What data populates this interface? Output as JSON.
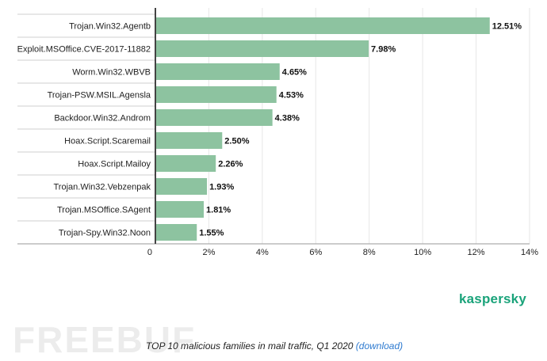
{
  "chart_data": {
    "type": "bar",
    "orientation": "horizontal",
    "categories": [
      "Trojan.Win32.Agentb",
      "Exploit.MSOffice.CVE-2017-11882",
      "Worm.Win32.WBVB",
      "Trojan-PSW.MSIL.Agensla",
      "Backdoor.Win32.Androm",
      "Hoax.Script.Scaremail",
      "Hoax.Script.Mailoy",
      "Trojan.Win32.Vebzenpak",
      "Trojan.MSOffice.SAgent",
      "Trojan-Spy.Win32.Noon"
    ],
    "values": [
      12.51,
      7.98,
      4.65,
      4.53,
      4.38,
      2.5,
      2.26,
      1.93,
      1.81,
      1.55
    ],
    "value_labels": [
      "12.51%",
      "7.98%",
      "4.65%",
      "4.53%",
      "4.38%",
      "2.50%",
      "2.26%",
      "1.93%",
      "1.81%",
      "1.55%"
    ],
    "x_ticks": [
      0,
      2,
      4,
      6,
      8,
      10,
      12,
      14
    ],
    "x_tick_labels": [
      "0",
      "2%",
      "4%",
      "6%",
      "8%",
      "10%",
      "12%",
      "14%"
    ],
    "xlim": [
      0,
      14
    ],
    "grid": true,
    "bar_color": "#8dc3a0",
    "title": "",
    "xlabel": "",
    "ylabel": ""
  },
  "brand": {
    "name": "kaspersky",
    "color": "#1aa37a"
  },
  "watermark": {
    "text": "FREEBUF"
  },
  "caption": {
    "text": "TOP 10 malicious families in mail traffic, Q1 2020 ",
    "link": "(download)",
    "link_color": "#2f7bd0"
  }
}
